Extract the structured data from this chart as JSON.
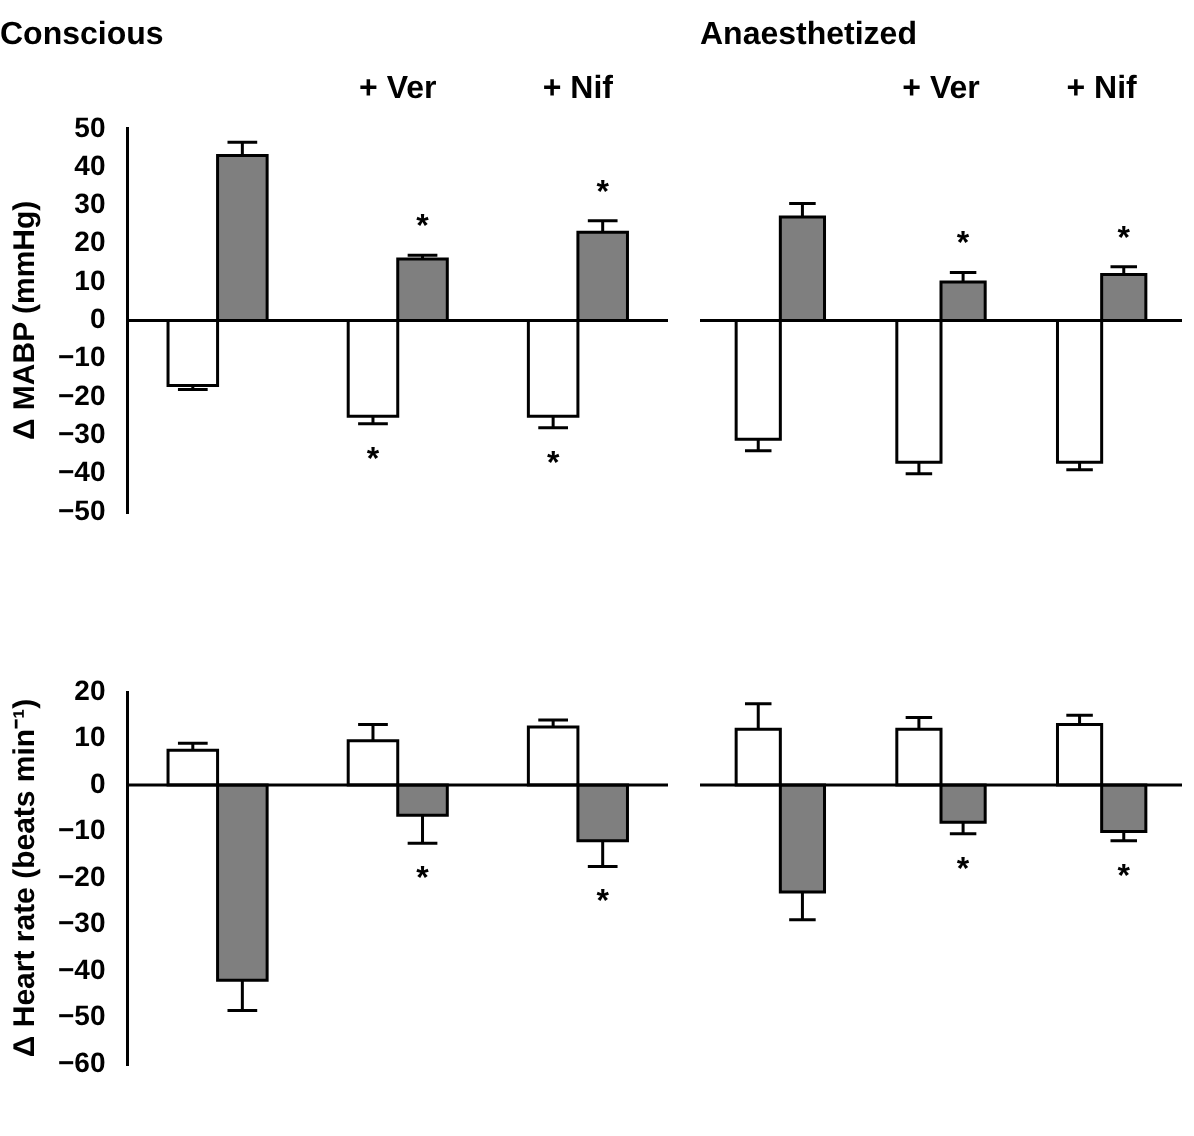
{
  "chart_data": [
    {
      "type": "bar",
      "title": "Conscious",
      "ylabel": "Δ MABP (mmHg)",
      "categories": [
        null,
        "+ Ver",
        "+ Nif"
      ],
      "ylim": [
        -50,
        50
      ],
      "yticks": [
        -50,
        -40,
        -30,
        -20,
        -10,
        0,
        10,
        20,
        30,
        40,
        50
      ],
      "series": [
        {
          "color": "#ffffff",
          "values": [
            -17,
            -25,
            -25
          ],
          "errors": [
            [
              -18,
              -17
            ],
            [
              -27,
              -25
            ],
            [
              -28,
              -25
            ]
          ]
        },
        {
          "color": "#7f7f7f",
          "values": [
            43,
            16,
            23
          ],
          "errors": [
            [
              43,
              46.5
            ],
            [
              16,
              17
            ],
            [
              23,
              26
            ]
          ]
        }
      ],
      "annotations": [
        {
          "text": "*",
          "x": "+ Ver",
          "y": -25
        },
        {
          "text": "*",
          "x": "+ Ver",
          "y": 16
        },
        {
          "text": "*",
          "x": "+ Nif",
          "y": -25
        },
        {
          "text": "*",
          "x": "+ Nif",
          "y": 23
        }
      ]
    },
    {
      "type": "bar",
      "title": "Anaesthetized",
      "categories": [
        null,
        "+ Ver",
        "+ Nif"
      ],
      "ylim": [
        -50,
        50
      ],
      "tick_labels": "x",
      "series": [
        {
          "color": "#ffffff",
          "values": [
            -31,
            -37,
            -37
          ],
          "errors": [
            [
              -34,
              -31
            ],
            [
              -40,
              -37
            ],
            [
              -39,
              -37
            ]
          ]
        },
        {
          "color": "#7f7f7f",
          "values": [
            27,
            10,
            12
          ],
          "errors": [
            [
              27,
              30.5
            ],
            [
              10,
              12.5
            ],
            [
              12,
              14
            ]
          ]
        }
      ],
      "annotations": [
        {
          "text": "*",
          "x": "+ Ver",
          "y": 10
        },
        {
          "text": "*",
          "x": "+ Nif",
          "y": 12
        }
      ]
    },
    {
      "type": "bar",
      "ylabel": "Δ Heart rate (beats min⁻¹)",
      "categories": [
        null,
        "+ Ver",
        "+ Nif"
      ],
      "ylim": [
        -60,
        20
      ],
      "yticks": [
        -60,
        -50,
        -40,
        -30,
        -20,
        -10,
        0,
        10,
        20
      ],
      "tick_labels": "y",
      "series": [
        {
          "color": "#ffffff",
          "values": [
            7.5,
            9.5,
            12.5
          ],
          "errors": [
            [
              7.5,
              9
            ],
            [
              9.5,
              13
            ],
            [
              12.5,
              14
            ]
          ]
        },
        {
          "color": "#7f7f7f",
          "values": [
            -42,
            -6.5,
            -12
          ],
          "errors": [
            [
              -48.5,
              -42
            ],
            [
              -12.5,
              -6.5
            ],
            [
              -17.5,
              -12
            ]
          ]
        }
      ],
      "annotations": [
        {
          "text": "*",
          "x": "+ Ver",
          "y": -6.5
        },
        {
          "text": "*",
          "x": "+ Nif",
          "y": -12
        }
      ]
    },
    {
      "type": "bar",
      "categories": [
        null,
        "+ Ver",
        "+ Nif"
      ],
      "ylim": [
        -60,
        20
      ],
      "tick_labels": false,
      "series": [
        {
          "color": "#ffffff",
          "values": [
            12,
            12,
            13
          ],
          "errors": [
            [
              12,
              17.5
            ],
            [
              12,
              14.5
            ],
            [
              13,
              15
            ]
          ]
        },
        {
          "color": "#7f7f7f",
          "values": [
            -23,
            -8,
            -10
          ],
          "errors": [
            [
              -29,
              -23
            ],
            [
              -10.5,
              -8
            ],
            [
              -12,
              -10
            ]
          ]
        }
      ],
      "annotations": [
        {
          "text": "*",
          "x": "+ Ver",
          "y": -8
        },
        {
          "text": "*",
          "x": "+ Nif",
          "y": -10
        }
      ]
    }
  ]
}
